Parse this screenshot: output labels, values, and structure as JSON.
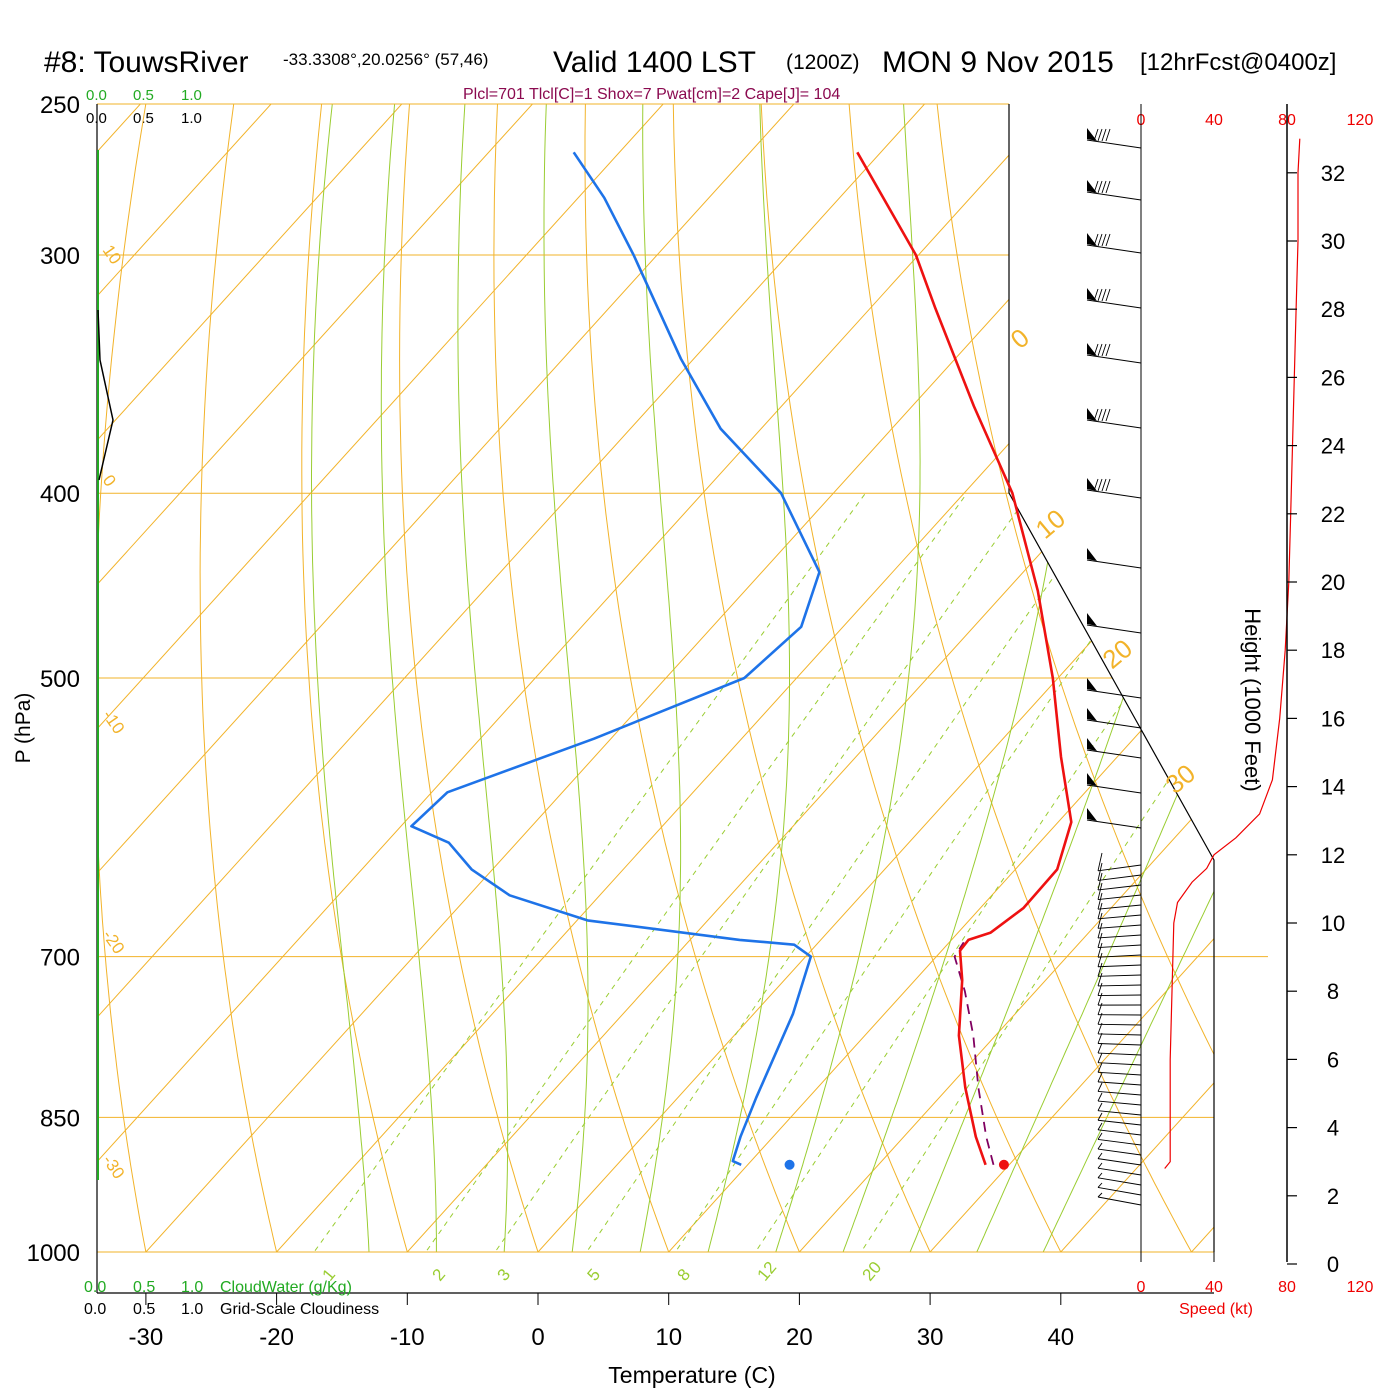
{
  "header": {
    "station": "#8: TouwsRiver",
    "coords": "-33.3308°,20.0256° (57,46)",
    "valid": "Valid 1400 LST",
    "zulu": "(1200Z)",
    "date": "MON 9 Nov 2015",
    "forecast": "[12hrFcst@0400z]",
    "indices": "Plcl=701 Tlcl[C]=1 Shox=7 Pwat[cm]=2 Cape[J]= 104"
  },
  "scale_rows": {
    "green": [
      "0.0",
      "0.5",
      "1.0"
    ],
    "black": [
      "0.0",
      "0.5",
      "1.0"
    ],
    "cloudwater_label": "CloudWater (g/Kg)",
    "cloudiness_label": "Grid-Scale Cloudiness"
  },
  "speed_axis": {
    "ticks": [
      "0",
      "40",
      "80",
      "120"
    ],
    "label": "Speed (kt)"
  },
  "colors": {
    "isotherm": "#f2b32a",
    "mixing_ratio": "#9acd32",
    "temperature": "#ee1111",
    "dewpoint": "#1e73e8",
    "parcel": "#800060",
    "speed": "#ee0000",
    "cloudwater": "#22aa22"
  },
  "chart_data": {
    "type": "line",
    "subtype": "skew-T log-P sounding",
    "xlabel": "Temperature (C)",
    "ylabel": "P (hPa)",
    "right_ylabel": "Height (1000 Feet)",
    "x_ticks": [
      -30,
      -20,
      -10,
      0,
      10,
      20,
      30,
      40
    ],
    "pressure_ticks": [
      250,
      300,
      400,
      500,
      700,
      850,
      1000
    ],
    "height_ticks": [
      0,
      2,
      4,
      6,
      8,
      10,
      12,
      14,
      16,
      18,
      20,
      22,
      24,
      26,
      28,
      30,
      32
    ],
    "theta_labels": [
      "10",
      "0",
      "-10",
      "-20",
      "-30"
    ],
    "theta_e_labels": [
      "0",
      "10",
      "20",
      "30"
    ],
    "mixing_ratio_labels": [
      "1",
      "2",
      "3",
      "5",
      "8",
      "12",
      "20"
    ],
    "series": [
      {
        "name": "Temperature",
        "points": [
          {
            "p": 900,
            "t": 28.2
          },
          {
            "p": 870,
            "t": 25.5
          },
          {
            "p": 820,
            "t": 21.3
          },
          {
            "p": 770,
            "t": 17.2
          },
          {
            "p": 720,
            "t": 13.6
          },
          {
            "p": 695,
            "t": 11.4
          },
          {
            "p": 686,
            "t": 11.3
          },
          {
            "p": 680,
            "t": 12.5
          },
          {
            "p": 660,
            "t": 13.3
          },
          {
            "p": 630,
            "t": 13.2
          },
          {
            "p": 595,
            "t": 11.0
          },
          {
            "p": 550,
            "t": 5.7
          },
          {
            "p": 500,
            "t": -0.4
          },
          {
            "p": 450,
            "t": -7.6
          },
          {
            "p": 400,
            "t": -16.3
          },
          {
            "p": 360,
            "t": -25.3
          },
          {
            "p": 320,
            "t": -35.0
          },
          {
            "p": 300,
            "t": -40.2
          },
          {
            "p": 265,
            "t": -51.8
          }
        ]
      },
      {
        "name": "Dewpoint",
        "points": [
          {
            "p": 900,
            "t": 9.5
          },
          {
            "p": 896,
            "t": 8.6
          },
          {
            "p": 870,
            "t": 7.5
          },
          {
            "p": 830,
            "t": 6.0
          },
          {
            "p": 750,
            "t": 3.0
          },
          {
            "p": 700,
            "t": 0.4
          },
          {
            "p": 690,
            "t": -1.7
          },
          {
            "p": 686,
            "t": -6.2
          },
          {
            "p": 670,
            "t": -19.2
          },
          {
            "p": 650,
            "t": -26.9
          },
          {
            "p": 630,
            "t": -31.6
          },
          {
            "p": 610,
            "t": -35.2
          },
          {
            "p": 598,
            "t": -39.2
          },
          {
            "p": 574,
            "t": -38.8
          },
          {
            "p": 538,
            "t": -31.3
          },
          {
            "p": 500,
            "t": -24.0
          },
          {
            "p": 470,
            "t": -23.2
          },
          {
            "p": 440,
            "t": -25.6
          },
          {
            "p": 400,
            "t": -34.0
          },
          {
            "p": 370,
            "t": -43.1
          },
          {
            "p": 340,
            "t": -51.0
          },
          {
            "p": 300,
            "t": -61.8
          },
          {
            "p": 280,
            "t": -68.0
          },
          {
            "p": 265,
            "t": -73.5
          }
        ]
      },
      {
        "name": "Parcel",
        "points": [
          {
            "p": 900,
            "t": 28.8
          },
          {
            "p": 870,
            "t": 26.3
          },
          {
            "p": 820,
            "t": 22.3
          },
          {
            "p": 770,
            "t": 18.3
          },
          {
            "p": 730,
            "t": 14.6
          },
          {
            "p": 700,
            "t": 11.4
          },
          {
            "p": 688,
            "t": 11.1
          }
        ]
      }
    ],
    "surface_markers": [
      {
        "name": "Surface temperature",
        "p": 900,
        "t": 29.6
      },
      {
        "name": "Surface dewpoint",
        "p": 900,
        "t": 13.2
      }
    ],
    "wind_speed_profile_kt": [
      {
        "h": 2.8,
        "v": 13
      },
      {
        "h": 3.0,
        "v": 16
      },
      {
        "h": 4.0,
        "v": 16
      },
      {
        "h": 6.0,
        "v": 16
      },
      {
        "h": 8.0,
        "v": 17
      },
      {
        "h": 10.0,
        "v": 18
      },
      {
        "h": 10.6,
        "v": 20
      },
      {
        "h": 11.2,
        "v": 28
      },
      {
        "h": 11.6,
        "v": 36
      },
      {
        "h": 12.0,
        "v": 40
      },
      {
        "h": 12.5,
        "v": 52
      },
      {
        "h": 13.2,
        "v": 65
      },
      {
        "h": 14.2,
        "v": 72
      },
      {
        "h": 16.0,
        "v": 76
      },
      {
        "h": 18.0,
        "v": 79
      },
      {
        "h": 20.0,
        "v": 81
      },
      {
        "h": 22.0,
        "v": 82
      },
      {
        "h": 24.0,
        "v": 83
      },
      {
        "h": 26.0,
        "v": 84
      },
      {
        "h": 28.0,
        "v": 85
      },
      {
        "h": 30.0,
        "v": 86
      },
      {
        "h": 32.0,
        "v": 86
      },
      {
        "h": 33.0,
        "v": 87
      }
    ]
  }
}
